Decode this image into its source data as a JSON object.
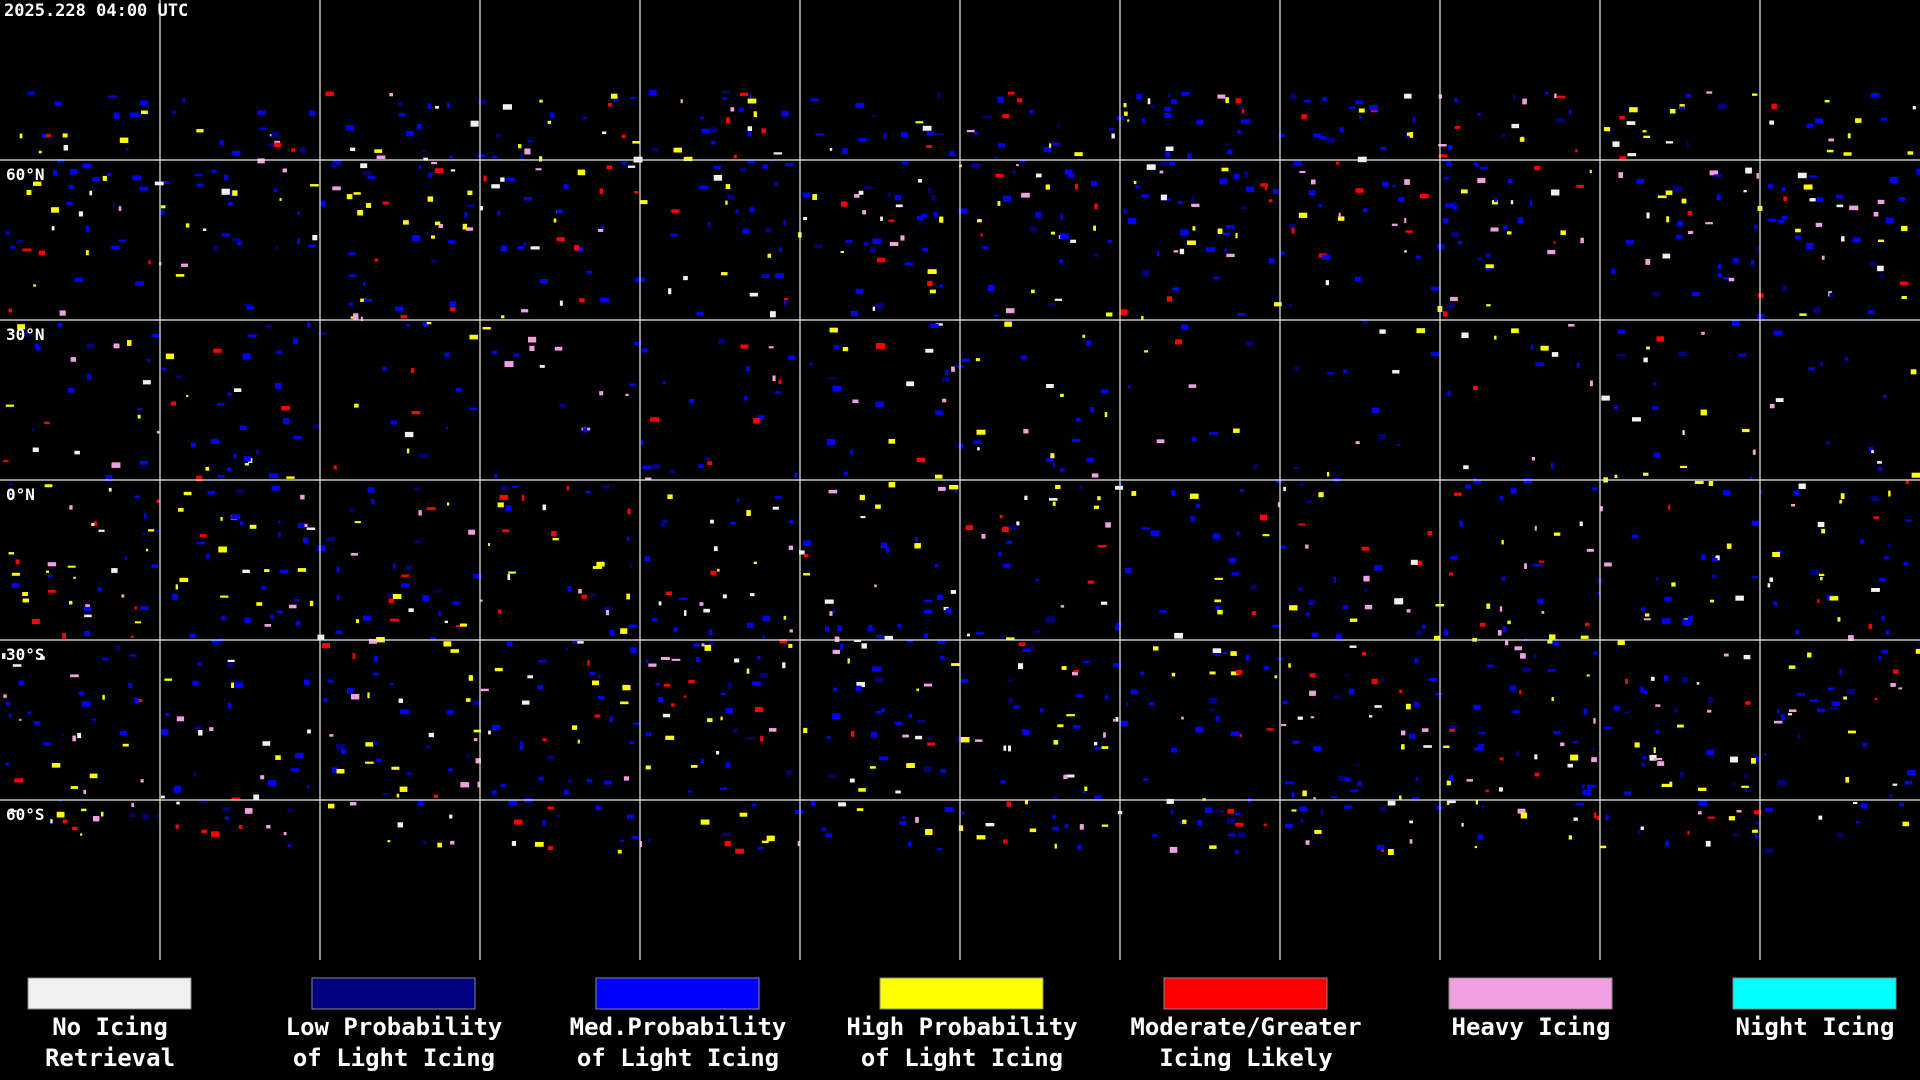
{
  "header": {
    "title": "2025.228 04:00 UTC"
  },
  "map": {
    "latitude_labels": [
      "60°N",
      "30°N",
      "0°N",
      "30°S",
      "60°S"
    ]
  },
  "legend": {
    "items": [
      {
        "color": "#f0f0f0",
        "lines": [
          "No Icing",
          "Retrieval"
        ]
      },
      {
        "color": "#000080",
        "lines": [
          "Low Probability",
          "of Light Icing"
        ]
      },
      {
        "color": "#0000ff",
        "lines": [
          "Med.Probability",
          "of Light Icing"
        ]
      },
      {
        "color": "#ffff00",
        "lines": [
          "High Probability",
          "of Light Icing"
        ]
      },
      {
        "color": "#ff0000",
        "lines": [
          "Moderate/Greater",
          "Icing Likely"
        ]
      },
      {
        "color": "#f0a0e0",
        "lines": [
          "Heavy Icing"
        ]
      },
      {
        "color": "#00ffff",
        "lines": [
          "Night Icing"
        ]
      }
    ]
  }
}
